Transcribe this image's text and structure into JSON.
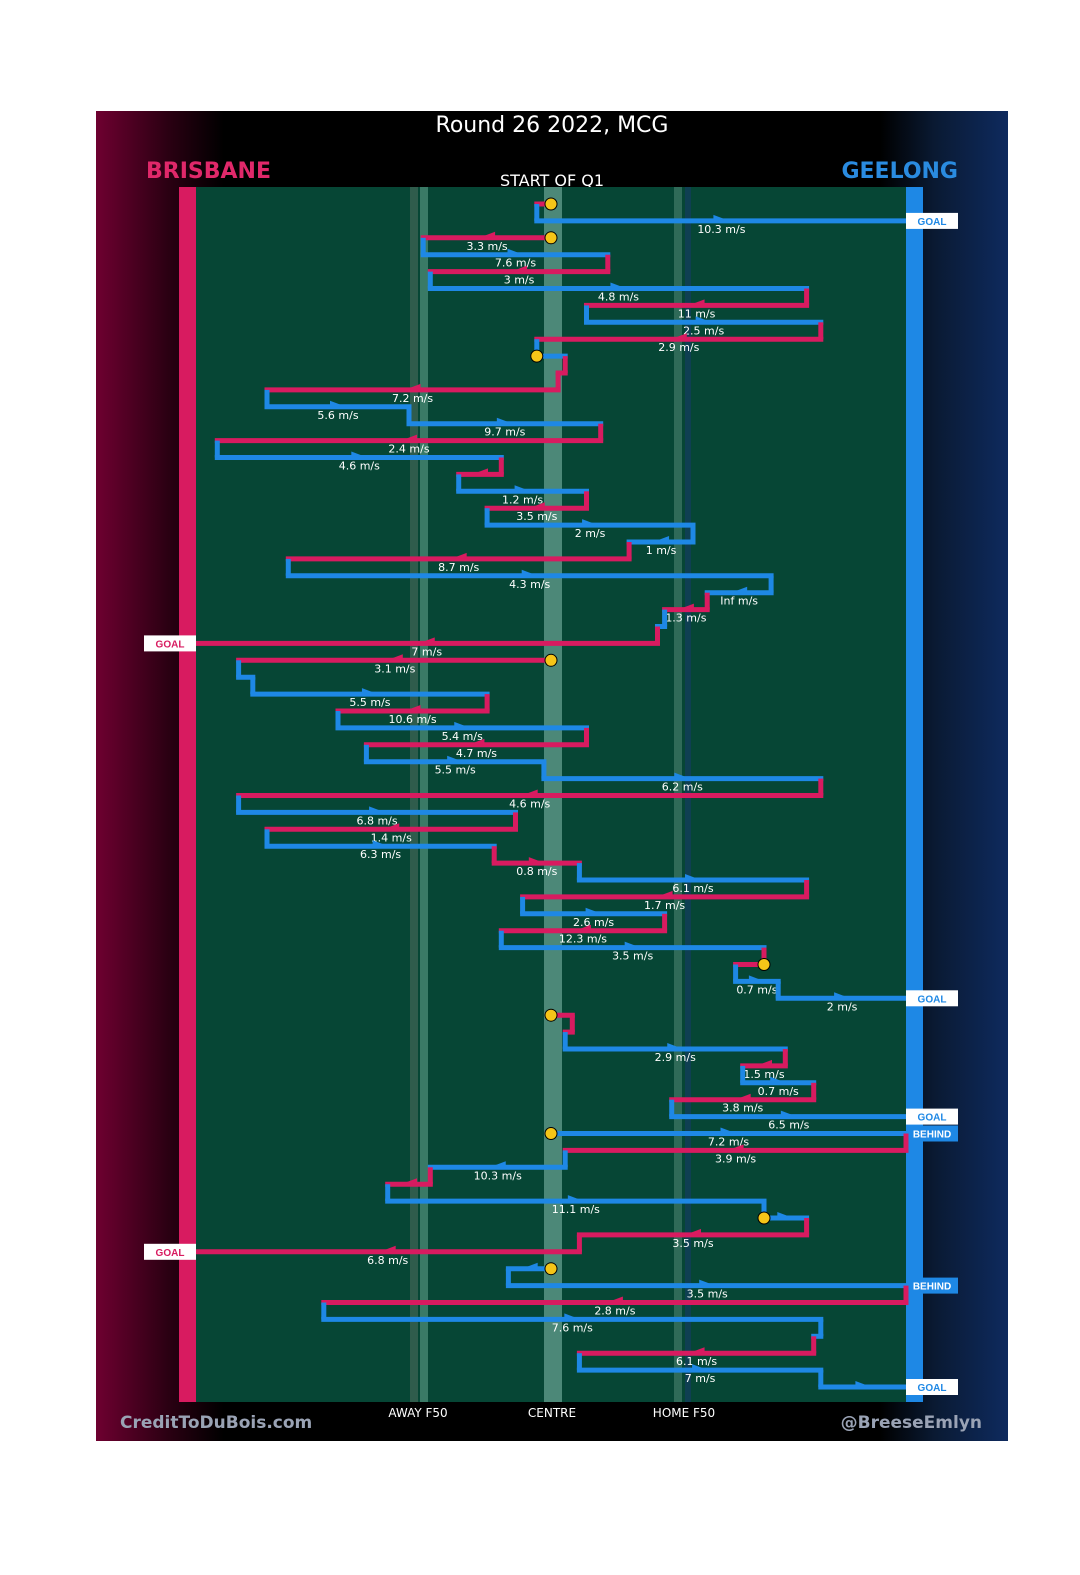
{
  "title": "Round 26 2022, MCG",
  "teams": {
    "left": "BRISBANE",
    "right": "GEELONG"
  },
  "start_label": "START OF Q1",
  "footer": {
    "credit": "CreditToDuBois.com",
    "handle": "@BreeseEmlyn"
  },
  "colors": {
    "brisbane": "#d81b60",
    "geelong": "#1e88e5",
    "field": "#064635",
    "marker": "#f5c518"
  },
  "chart_data": {
    "type": "line",
    "title": "Round 26 2022, MCG",
    "x_axis": {
      "min": 0,
      "max": 100,
      "ticks": [
        {
          "label": "AWAY F50",
          "x": 28
        },
        {
          "label": "CENTRE",
          "x": 50
        },
        {
          "label": "HOME F50",
          "x": 72
        }
      ]
    },
    "chains": [
      {
        "team": "brisbane",
        "y": 1,
        "from": 50,
        "to": 48,
        "speed": ""
      },
      {
        "team": "geelong",
        "y": 2,
        "from": 48,
        "to": 100,
        "speed": "10.3 m/s",
        "result": "GOAL"
      },
      {
        "team": "brisbane",
        "y": 3,
        "from": 50,
        "to": 32,
        "speed": "3.3 m/s"
      },
      {
        "team": "geelong",
        "y": 4,
        "from": 32,
        "to": 58,
        "speed": "7.6 m/s"
      },
      {
        "team": "brisbane",
        "y": 5,
        "from": 58,
        "to": 33,
        "speed": "3 m/s"
      },
      {
        "team": "geelong",
        "y": 6,
        "from": 33,
        "to": 86,
        "speed": "4.8 m/s"
      },
      {
        "team": "brisbane",
        "y": 7,
        "from": 86,
        "to": 55,
        "speed": "11 m/s"
      },
      {
        "team": "geelong",
        "y": 8,
        "from": 55,
        "to": 88,
        "speed": "2.5 m/s"
      },
      {
        "team": "brisbane",
        "y": 9,
        "from": 88,
        "to": 48,
        "speed": "2.9 m/s"
      },
      {
        "team": "geelong",
        "y": 10,
        "from": 48,
        "to": 52,
        "speed": ""
      },
      {
        "team": "brisbane",
        "y": 11,
        "from": 52,
        "to": 51,
        "speed": ""
      },
      {
        "team": "brisbane",
        "y": 12,
        "from": 51,
        "to": 10,
        "speed": "7.2 m/s"
      },
      {
        "team": "geelong",
        "y": 13,
        "from": 10,
        "to": 30,
        "speed": "5.6 m/s"
      },
      {
        "team": "geelong",
        "y": 14,
        "from": 30,
        "to": 57,
        "speed": "9.7 m/s"
      },
      {
        "team": "brisbane",
        "y": 15,
        "from": 57,
        "to": 3,
        "speed": "2.4 m/s"
      },
      {
        "team": "geelong",
        "y": 16,
        "from": 3,
        "to": 43,
        "speed": "4.6 m/s"
      },
      {
        "team": "brisbane",
        "y": 17,
        "from": 43,
        "to": 37,
        "speed": ""
      },
      {
        "team": "geelong",
        "y": 18,
        "from": 37,
        "to": 55,
        "speed": "1.2 m/s"
      },
      {
        "team": "brisbane",
        "y": 19,
        "from": 55,
        "to": 41,
        "speed": "3.5 m/s"
      },
      {
        "team": "geelong",
        "y": 20,
        "from": 41,
        "to": 70,
        "speed": "2 m/s"
      },
      {
        "team": "geelong",
        "y": 21,
        "from": 70,
        "to": 61,
        "speed": "1 m/s"
      },
      {
        "team": "brisbane",
        "y": 22,
        "from": 61,
        "to": 13,
        "speed": "8.7 m/s"
      },
      {
        "team": "geelong",
        "y": 23,
        "from": 13,
        "to": 81,
        "speed": "4.3 m/s"
      },
      {
        "team": "geelong",
        "y": 24,
        "from": 81,
        "to": 72,
        "speed": "Inf m/s"
      },
      {
        "team": "brisbane",
        "y": 25,
        "from": 72,
        "to": 66,
        "speed": "1.3 m/s"
      },
      {
        "team": "geelong",
        "y": 26,
        "from": 66,
        "to": 65,
        "speed": ""
      },
      {
        "team": "brisbane",
        "y": 27,
        "from": 65,
        "to": 0,
        "speed": "7 m/s",
        "result": "GOAL"
      },
      {
        "team": "brisbane",
        "y": 28,
        "from": 50,
        "to": 6,
        "speed": "3.1 m/s"
      },
      {
        "team": "geelong",
        "y": 29,
        "from": 6,
        "to": 8,
        "speed": ""
      },
      {
        "team": "geelong",
        "y": 30,
        "from": 8,
        "to": 41,
        "speed": "5.5 m/s"
      },
      {
        "team": "brisbane",
        "y": 31,
        "from": 41,
        "to": 20,
        "speed": "10.6 m/s"
      },
      {
        "team": "geelong",
        "y": 32,
        "from": 20,
        "to": 55,
        "speed": "5.4 m/s"
      },
      {
        "team": "brisbane",
        "y": 33,
        "from": 55,
        "to": 24,
        "speed": "4.7 m/s"
      },
      {
        "team": "geelong",
        "y": 34,
        "from": 24,
        "to": 49,
        "speed": "5.5 m/s"
      },
      {
        "team": "geelong",
        "y": 35,
        "from": 49,
        "to": 88,
        "speed": "6.2 m/s"
      },
      {
        "team": "brisbane",
        "y": 36,
        "from": 88,
        "to": 6,
        "speed": "4.6 m/s"
      },
      {
        "team": "geelong",
        "y": 37,
        "from": 6,
        "to": 45,
        "speed": "6.8 m/s"
      },
      {
        "team": "brisbane",
        "y": 38,
        "from": 45,
        "to": 10,
        "speed": "1.4 m/s"
      },
      {
        "team": "geelong",
        "y": 39,
        "from": 10,
        "to": 42,
        "speed": "6.3 m/s"
      },
      {
        "team": "brisbane",
        "y": 40,
        "from": 42,
        "to": 54,
        "speed": "0.8 m/s"
      },
      {
        "team": "geelong",
        "y": 41,
        "from": 54,
        "to": 86,
        "speed": "6.1 m/s"
      },
      {
        "team": "brisbane",
        "y": 42,
        "from": 86,
        "to": 46,
        "speed": "1.7 m/s"
      },
      {
        "team": "geelong",
        "y": 43,
        "from": 46,
        "to": 66,
        "speed": "2.6 m/s"
      },
      {
        "team": "brisbane",
        "y": 44,
        "from": 66,
        "to": 43,
        "speed": "12.3 m/s"
      },
      {
        "team": "geelong",
        "y": 45,
        "from": 43,
        "to": 80,
        "speed": "3.5 m/s"
      },
      {
        "team": "brisbane",
        "y": 46,
        "from": 80,
        "to": 76,
        "speed": ""
      },
      {
        "team": "geelong",
        "y": 47,
        "from": 76,
        "to": 82,
        "speed": "0.7 m/s"
      },
      {
        "team": "geelong",
        "y": 48,
        "from": 82,
        "to": 100,
        "speed": "2 m/s",
        "result": "GOAL"
      },
      {
        "team": "brisbane",
        "y": 49,
        "from": 50,
        "to": 53,
        "speed": ""
      },
      {
        "team": "brisbane",
        "y": 50,
        "from": 53,
        "to": 52,
        "speed": ""
      },
      {
        "team": "geelong",
        "y": 51,
        "from": 52,
        "to": 83,
        "speed": "2.9 m/s"
      },
      {
        "team": "brisbane",
        "y": 52,
        "from": 83,
        "to": 77,
        "speed": "1.5 m/s"
      },
      {
        "team": "geelong",
        "y": 53,
        "from": 77,
        "to": 87,
        "speed": "0.7 m/s"
      },
      {
        "team": "brisbane",
        "y": 54,
        "from": 87,
        "to": 67,
        "speed": "3.8 m/s"
      },
      {
        "team": "geelong",
        "y": 55,
        "from": 67,
        "to": 100,
        "speed": "6.5 m/s",
        "result": "GOAL"
      },
      {
        "team": "geelong",
        "y": 56,
        "from": 50,
        "to": 100,
        "speed": "7.2 m/s",
        "result": "BEHIND"
      },
      {
        "team": "brisbane",
        "y": 57,
        "from": 100,
        "to": 52,
        "speed": "3.9 m/s"
      },
      {
        "team": "geelong",
        "y": 58,
        "from": 52,
        "to": 33,
        "speed": "10.3 m/s"
      },
      {
        "team": "brisbane",
        "y": 59,
        "from": 33,
        "to": 27,
        "speed": ""
      },
      {
        "team": "geelong",
        "y": 60,
        "from": 27,
        "to": 80,
        "speed": "11.1 m/s"
      },
      {
        "team": "geelong",
        "y": 61,
        "from": 80,
        "to": 86,
        "speed": ""
      },
      {
        "team": "brisbane",
        "y": 62,
        "from": 86,
        "to": 54,
        "speed": "3.5 m/s"
      },
      {
        "team": "brisbane",
        "y": 63,
        "from": 54,
        "to": 0,
        "speed": "6.8 m/s",
        "result": "GOAL"
      },
      {
        "team": "geelong",
        "y": 64,
        "from": 50,
        "to": 44,
        "speed": ""
      },
      {
        "team": "geelong",
        "y": 65,
        "from": 44,
        "to": 100,
        "speed": "3.5 m/s",
        "result": "BEHIND"
      },
      {
        "team": "brisbane",
        "y": 66,
        "from": 100,
        "to": 18,
        "speed": "2.8 m/s"
      },
      {
        "team": "geelong",
        "y": 67,
        "from": 18,
        "to": 88,
        "speed": "7.6 m/s"
      },
      {
        "team": "geelong",
        "y": 68,
        "from": 88,
        "to": 87,
        "speed": ""
      },
      {
        "team": "brisbane",
        "y": 69,
        "from": 87,
        "to": 54,
        "speed": "6.1 m/s"
      },
      {
        "team": "geelong",
        "y": 70,
        "from": 54,
        "to": 88,
        "speed": "7 m/s"
      },
      {
        "team": "geelong",
        "y": 71,
        "from": 88,
        "to": 100,
        "speed": "",
        "result": "GOAL"
      }
    ]
  }
}
